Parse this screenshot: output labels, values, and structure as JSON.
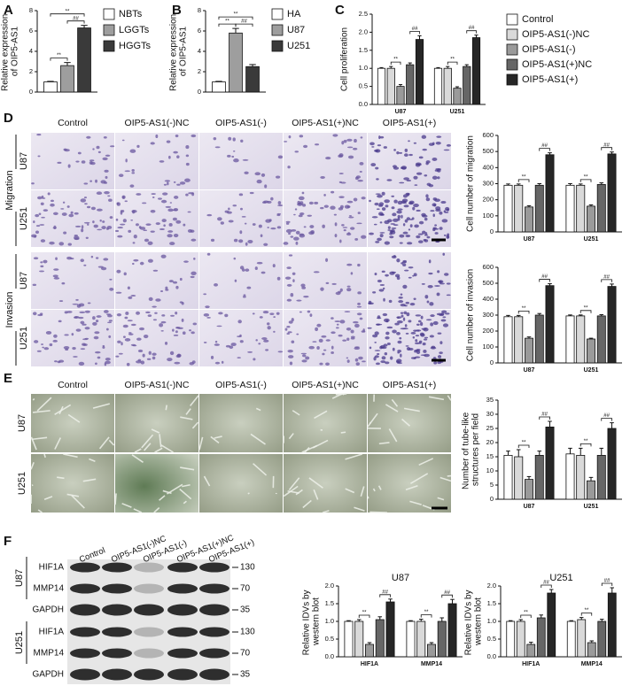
{
  "figure": {
    "panel_labels": [
      "A",
      "B",
      "C",
      "D",
      "E",
      "F"
    ],
    "conditions": [
      "Control",
      "OIP5-AS1(-)NC",
      "OIP5-AS1(-)",
      "OIP5-AS1(+)NC",
      "OIP5-AS1(+)"
    ],
    "assays": [
      "Migration",
      "Invasion"
    ],
    "cell_lines": [
      "U87",
      "U251"
    ],
    "blot_proteins": [
      "HIF1A",
      "MMP14",
      "GAPDH"
    ],
    "blot_markers": [
      "130",
      "70",
      "35"
    ]
  },
  "chart_data": [
    {
      "type": "bar",
      "ylabel": "Relative expression of OIP5-AS1",
      "categories": [
        null
      ],
      "series": [
        {
          "name": "NBTs",
          "color": "#ffffff",
          "values": [
            1.0
          ],
          "errors": [
            0.05
          ]
        },
        {
          "name": "LGGTs",
          "color": "#9e9e9e",
          "values": [
            2.6
          ],
          "errors": [
            0.3
          ]
        },
        {
          "name": "HGGTs",
          "color": "#3a3a3a",
          "values": [
            6.3
          ],
          "errors": [
            0.25
          ]
        }
      ],
      "ylim": [
        0,
        8
      ],
      "yticks": [
        0,
        2,
        4,
        6,
        8
      ],
      "legend": "right",
      "significance": [
        {
          "label": "**",
          "series": [
            0,
            1
          ]
        },
        {
          "label": "**",
          "series": [
            0,
            2
          ]
        },
        {
          "label": "##",
          "series": [
            1,
            2
          ]
        }
      ]
    },
    {
      "type": "bar",
      "ylabel": "Relative expression of OIP5-AS1",
      "categories": [
        null
      ],
      "series": [
        {
          "name": "HA",
          "color": "#ffffff",
          "values": [
            1.0
          ],
          "errors": [
            0.05
          ]
        },
        {
          "name": "U87",
          "color": "#9e9e9e",
          "values": [
            5.8
          ],
          "errors": [
            0.45
          ]
        },
        {
          "name": "U251",
          "color": "#3a3a3a",
          "values": [
            2.5
          ],
          "errors": [
            0.2
          ]
        }
      ],
      "ylim": [
        0,
        8
      ],
      "yticks": [
        0,
        2,
        4,
        6,
        8
      ],
      "legend": "right",
      "significance": [
        {
          "label": "**",
          "series": [
            0,
            1
          ]
        },
        {
          "label": "**",
          "series": [
            0,
            2
          ]
        },
        {
          "label": "##",
          "series": [
            1,
            2
          ]
        }
      ]
    },
    {
      "type": "bar",
      "ylabel": "Cell proliferation",
      "categories": [
        "U87",
        "U251"
      ],
      "series": [
        {
          "name": "Control",
          "color": "#ffffff",
          "values": [
            1.0,
            1.0
          ],
          "errors": [
            0.02,
            0.02
          ]
        },
        {
          "name": "OIP5-AS1(-)NC",
          "color": "#d9d9d9",
          "values": [
            1.0,
            1.0
          ],
          "errors": [
            0.05,
            0.05
          ]
        },
        {
          "name": "OIP5-AS1(-)",
          "color": "#9a9a9a",
          "values": [
            0.5,
            0.45
          ],
          "errors": [
            0.05,
            0.04
          ]
        },
        {
          "name": "OIP5-AS1(+)NC",
          "color": "#666666",
          "values": [
            1.1,
            1.05
          ],
          "errors": [
            0.05,
            0.05
          ]
        },
        {
          "name": "OIP5-AS1(+)",
          "color": "#262626",
          "values": [
            1.8,
            1.85
          ],
          "errors": [
            0.1,
            0.07
          ]
        }
      ],
      "ylim": [
        0,
        2.5
      ],
      "yticks": [
        {
          "value": 0,
          "label": "0.0"
        },
        0.5,
        {
          "value": 1,
          "label": "1.0"
        },
        1.5,
        {
          "value": 2,
          "label": "2.0"
        },
        2.5
      ],
      "legend": "right",
      "significance": [
        {
          "label": "**",
          "series": [
            1,
            2
          ]
        },
        {
          "label": "##",
          "series": [
            3,
            4
          ]
        }
      ]
    },
    {
      "type": "bar",
      "ylabel": "Cell number of migration",
      "categories": [
        "U87",
        "U251"
      ],
      "series": [
        {
          "color": "#ffffff",
          "values": [
            290,
            290
          ],
          "errors": [
            8,
            10
          ]
        },
        {
          "color": "#d9d9d9",
          "values": [
            290,
            290
          ],
          "errors": [
            8,
            8
          ]
        },
        {
          "color": "#9a9a9a",
          "values": [
            155,
            160
          ],
          "errors": [
            8,
            8
          ]
        },
        {
          "color": "#666666",
          "values": [
            290,
            295
          ],
          "errors": [
            10,
            10
          ]
        },
        {
          "color": "#262626",
          "values": [
            480,
            485
          ],
          "errors": [
            12,
            12
          ]
        }
      ],
      "ylim": [
        0,
        600
      ],
      "yticks": [
        0,
        100,
        200,
        300,
        400,
        500,
        600
      ],
      "significance": [
        {
          "label": "**",
          "series": [
            1,
            2
          ]
        },
        {
          "label": "##",
          "series": [
            3,
            4
          ]
        }
      ]
    },
    {
      "type": "bar",
      "ylabel": "Cell number of invasion",
      "categories": [
        "U87",
        "U251"
      ],
      "series": [
        {
          "color": "#ffffff",
          "values": [
            290,
            295
          ],
          "errors": [
            8,
            6
          ]
        },
        {
          "color": "#d9d9d9",
          "values": [
            290,
            295
          ],
          "errors": [
            8,
            6
          ]
        },
        {
          "color": "#9a9a9a",
          "values": [
            155,
            150
          ],
          "errors": [
            8,
            5
          ]
        },
        {
          "color": "#666666",
          "values": [
            300,
            295
          ],
          "errors": [
            10,
            8
          ]
        },
        {
          "color": "#262626",
          "values": [
            485,
            480
          ],
          "errors": [
            12,
            15
          ]
        }
      ],
      "ylim": [
        0,
        600
      ],
      "yticks": [
        0,
        100,
        200,
        300,
        400,
        500,
        600
      ],
      "significance": [
        {
          "label": "**",
          "series": [
            1,
            2
          ]
        },
        {
          "label": "##",
          "series": [
            3,
            4
          ]
        }
      ]
    },
    {
      "type": "bar",
      "ylabel": "Number of tube-like structures per field",
      "categories": [
        "U87",
        "U251"
      ],
      "series": [
        {
          "color": "#ffffff",
          "values": [
            15.5,
            16
          ],
          "errors": [
            1.5,
            2
          ]
        },
        {
          "color": "#d9d9d9",
          "values": [
            15,
            15.5
          ],
          "errors": [
            2.5,
            2.5
          ]
        },
        {
          "color": "#9a9a9a",
          "values": [
            7,
            6.5
          ],
          "errors": [
            1,
            1.2
          ]
        },
        {
          "color": "#666666",
          "values": [
            15.5,
            15.5
          ],
          "errors": [
            1.5,
            2.5
          ]
        },
        {
          "color": "#262626",
          "values": [
            25.5,
            25
          ],
          "errors": [
            2,
            2
          ]
        }
      ],
      "ylim": [
        0,
        35
      ],
      "yticks": [
        0,
        5,
        10,
        15,
        20,
        25,
        30,
        35
      ],
      "significance": [
        {
          "label": "**",
          "series": [
            1,
            2
          ]
        },
        {
          "label": "##",
          "series": [
            3,
            4
          ]
        }
      ]
    },
    {
      "type": "bar",
      "title": "U87",
      "ylabel": "Relative IDVs by western blot",
      "categories": [
        "HIF1A",
        "MMP14"
      ],
      "series": [
        {
          "color": "#ffffff",
          "values": [
            1.0,
            1.0
          ],
          "errors": [
            0.02,
            0.02
          ]
        },
        {
          "color": "#d9d9d9",
          "values": [
            1.0,
            1.0
          ],
          "errors": [
            0.05,
            0.06
          ]
        },
        {
          "color": "#9a9a9a",
          "values": [
            0.35,
            0.35
          ],
          "errors": [
            0.05,
            0.05
          ]
        },
        {
          "color": "#666666",
          "values": [
            1.05,
            1.0
          ],
          "errors": [
            0.08,
            0.1
          ]
        },
        {
          "color": "#262626",
          "values": [
            1.55,
            1.5
          ],
          "errors": [
            0.08,
            0.12
          ]
        }
      ],
      "ylim": [
        0,
        2
      ],
      "yticks": [
        {
          "value": 0,
          "label": "0.0"
        },
        0.5,
        {
          "value": 1,
          "label": "1.0"
        },
        1.5,
        {
          "value": 2,
          "label": "2.0"
        }
      ],
      "significance": [
        {
          "label": "**",
          "series": [
            1,
            2
          ]
        },
        {
          "label": "##",
          "series": [
            3,
            4
          ]
        }
      ]
    },
    {
      "type": "bar",
      "title": "U251",
      "ylabel": "Relative IDVs by western blot",
      "categories": [
        "HIF1A",
        "MMP14"
      ],
      "series": [
        {
          "color": "#ffffff",
          "values": [
            1.0,
            1.0
          ],
          "errors": [
            0.02,
            0.02
          ]
        },
        {
          "color": "#d9d9d9",
          "values": [
            1.0,
            1.05
          ],
          "errors": [
            0.05,
            0.06
          ]
        },
        {
          "color": "#9a9a9a",
          "values": [
            0.35,
            0.4
          ],
          "errors": [
            0.06,
            0.05
          ]
        },
        {
          "color": "#666666",
          "values": [
            1.1,
            1.0
          ],
          "errors": [
            0.08,
            0.06
          ]
        },
        {
          "color": "#262626",
          "values": [
            1.8,
            1.8
          ],
          "errors": [
            0.1,
            0.15
          ]
        }
      ],
      "ylim": [
        0,
        2
      ],
      "yticks": [
        {
          "value": 0,
          "label": "0.0"
        },
        0.5,
        {
          "value": 1,
          "label": "1.0"
        },
        1.5,
        {
          "value": 2,
          "label": "2.0"
        }
      ],
      "significance": [
        {
          "label": "**",
          "series": [
            1,
            2
          ]
        },
        {
          "label": "##",
          "series": [
            3,
            4
          ]
        }
      ]
    }
  ]
}
